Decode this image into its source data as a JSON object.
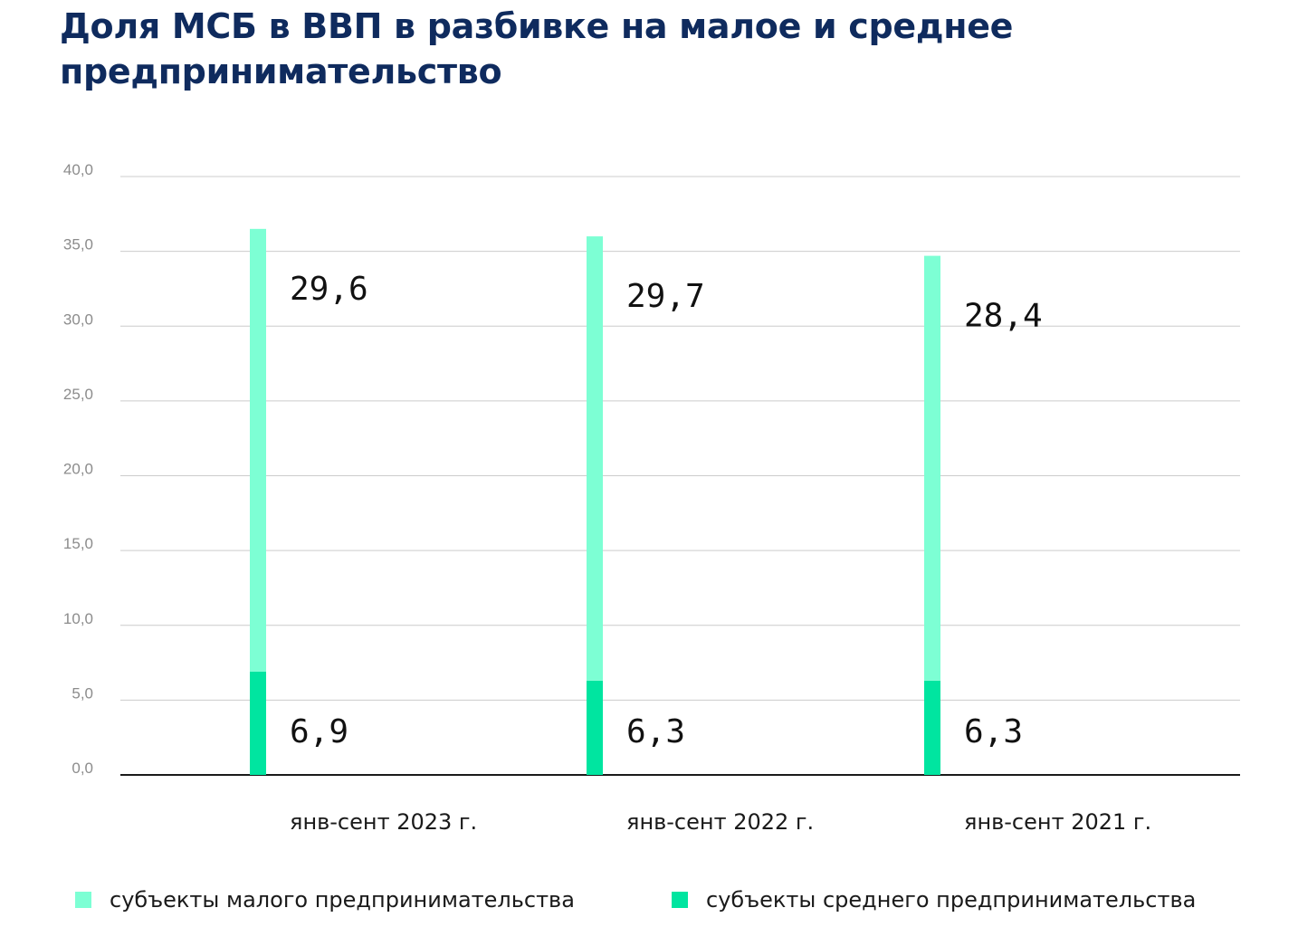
{
  "chart_data": {
    "type": "bar",
    "stacked": true,
    "title": "Доля МСБ в ВВП в разбивке на малое и среднее предпринимательство",
    "categories": [
      "янв-сент 2023 г.",
      "янв-сент 2022 г.",
      "янв-сент 2021 г."
    ],
    "series": [
      {
        "name": "субъекты среднего предпринимательства",
        "values": [
          6.9,
          6.3,
          6.3
        ],
        "labels": [
          "6,9",
          "6,3",
          "6,3"
        ],
        "color": "#00e5a0"
      },
      {
        "name": "субъекты малого предпринимательства",
        "values": [
          29.6,
          29.7,
          28.4
        ],
        "labels": [
          "29,6",
          "29,7",
          "28,4"
        ],
        "color": "#7dffd4"
      }
    ],
    "ylim": [
      0,
      40
    ],
    "yticks": [
      0,
      5,
      10,
      15,
      20,
      25,
      30,
      35,
      40
    ],
    "ytick_labels": [
      "0,0",
      "5,0",
      "10,0",
      "15,0",
      "20,0",
      "25,0",
      "30,0",
      "35,0",
      "40,0"
    ],
    "xlabel": "",
    "ylabel": "",
    "grid": true,
    "legend_position": "bottom",
    "colors": {
      "title": "#0f2b5e",
      "grid": "#cccccc",
      "axis": "#1a1a1a",
      "tick_text": "#8c8c8c"
    }
  }
}
